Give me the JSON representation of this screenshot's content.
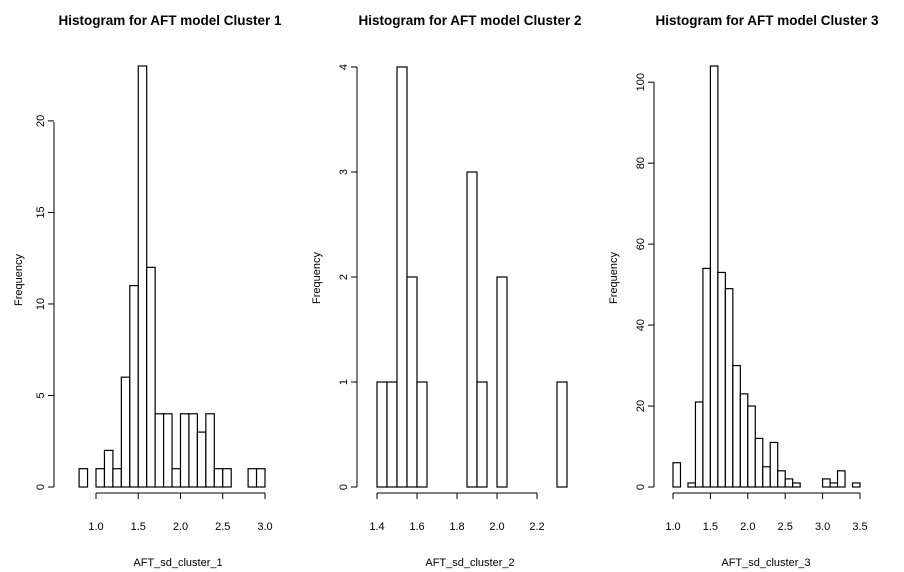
{
  "chart_data": [
    {
      "type": "bar",
      "title": "Histogram for AFT model Cluster 1",
      "xlabel": "AFT_sd_cluster_1",
      "ylabel": "Frequency",
      "xlim": [
        0.8,
        3.0
      ],
      "ylim": [
        0,
        23
      ],
      "x_ticks": [
        "1.0",
        "1.5",
        "2.0",
        "2.5",
        "3.0"
      ],
      "y_ticks": [
        "0",
        "5",
        "10",
        "15",
        "20"
      ],
      "bin_width": 0.1,
      "bin_starts": [
        0.8,
        0.9,
        1.0,
        1.1,
        1.2,
        1.3,
        1.4,
        1.5,
        1.6,
        1.7,
        1.8,
        1.9,
        2.0,
        2.1,
        2.2,
        2.3,
        2.4,
        2.5,
        2.6,
        2.7,
        2.8,
        2.9
      ],
      "values": [
        1,
        0,
        1,
        2,
        1,
        6,
        11,
        23,
        12,
        4,
        4,
        1,
        4,
        4,
        3,
        4,
        1,
        1,
        0,
        0,
        1,
        1
      ]
    },
    {
      "type": "bar",
      "title": "Histogram for AFT model Cluster 2",
      "xlabel": "AFT_sd_cluster_2",
      "ylabel": "Frequency",
      "xlim": [
        1.4,
        2.35
      ],
      "ylim": [
        0,
        4
      ],
      "x_ticks": [
        "1.4",
        "1.6",
        "1.8",
        "2.0",
        "2.2"
      ],
      "y_ticks": [
        "0",
        "1",
        "2",
        "3",
        "4"
      ],
      "bin_width": 0.05,
      "bin_starts": [
        1.4,
        1.45,
        1.5,
        1.55,
        1.6,
        1.65,
        1.7,
        1.75,
        1.8,
        1.85,
        1.9,
        1.95,
        2.0,
        2.05,
        2.1,
        2.15,
        2.2,
        2.25,
        2.3
      ],
      "values": [
        1,
        1,
        4,
        2,
        1,
        0,
        0,
        0,
        0,
        3,
        1,
        0,
        2,
        0,
        0,
        0,
        0,
        0,
        1
      ]
    },
    {
      "type": "bar",
      "title": "Histogram for AFT model Cluster 3",
      "xlabel": "AFT_sd_cluster_3",
      "ylabel": "Frequency",
      "xlim": [
        1.0,
        3.5
      ],
      "ylim": [
        0,
        104
      ],
      "x_ticks": [
        "1.0",
        "1.5",
        "2.0",
        "2.5",
        "3.0",
        "3.5"
      ],
      "y_ticks": [
        "0",
        "20",
        "40",
        "60",
        "80",
        "100"
      ],
      "bin_width": 0.1,
      "bin_starts": [
        1.0,
        1.1,
        1.2,
        1.3,
        1.4,
        1.5,
        1.6,
        1.7,
        1.8,
        1.9,
        2.0,
        2.1,
        2.2,
        2.3,
        2.4,
        2.5,
        2.6,
        2.7,
        2.8,
        2.9,
        3.0,
        3.1,
        3.2,
        3.3,
        3.4
      ],
      "values": [
        6,
        0,
        1,
        21,
        54,
        104,
        53,
        49,
        30,
        23,
        20,
        12,
        5,
        11,
        4,
        2,
        1,
        0,
        0,
        0,
        2,
        1,
        4,
        0,
        1
      ]
    }
  ]
}
